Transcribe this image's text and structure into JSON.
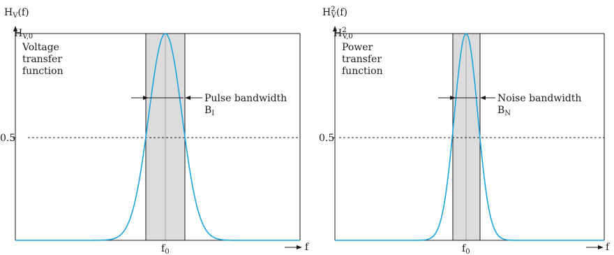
{
  "panels": [
    {
      "y_axis_main": "H",
      "y_axis_sub": "V",
      "y_axis_sup": "",
      "y_axis_arg": "(f)",
      "peak_main": "H",
      "peak_sub": "V,0",
      "peak_sup": "",
      "caption_line1": "Voltage",
      "caption_line2": "transfer",
      "caption_line3": "function",
      "half_tick": "0.5",
      "bandwidth_label": "Pulse bandwidth",
      "bandwidth_symbol": "B",
      "bandwidth_sub": "I",
      "center_main": "f",
      "center_sub": "0",
      "x_axis_label": "f"
    },
    {
      "y_axis_main": "H",
      "y_axis_sub": "V",
      "y_axis_sup": "2",
      "y_axis_arg": "(f)",
      "peak_main": "H",
      "peak_sub": "V,0",
      "peak_sup": "2",
      "caption_line1": "Power",
      "caption_line2": "transfer",
      "caption_line3": "function",
      "half_tick": "0.5",
      "bandwidth_label": "Noise bandwidth",
      "bandwidth_symbol": "B",
      "bandwidth_sub": "N",
      "center_main": "f",
      "center_sub": "0",
      "x_axis_label": "f"
    }
  ],
  "colors": {
    "curve": "#1aa3dd",
    "band": "#dcdcdc"
  }
}
